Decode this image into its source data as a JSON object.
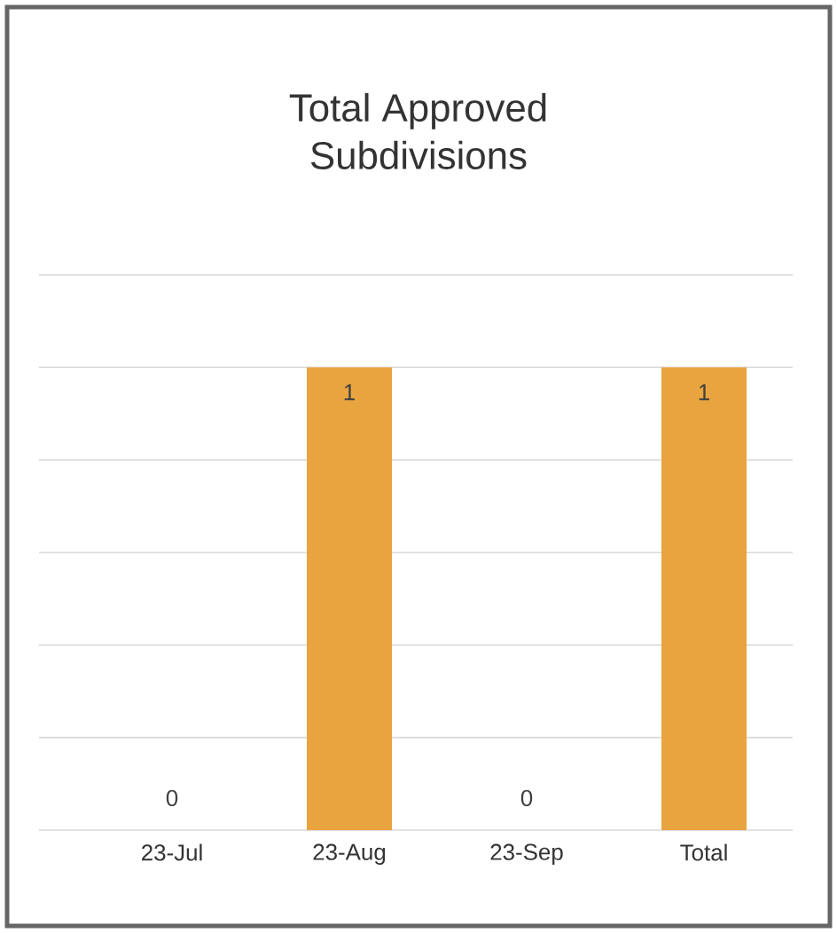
{
  "chart_data": {
    "type": "bar",
    "title": "Total Approved Subdivisions",
    "categories": [
      "23-Jul",
      "23-Aug",
      "23-Sep",
      "Total"
    ],
    "values": [
      0,
      1,
      0,
      1
    ],
    "color": "#e8a43f",
    "ylim": [
      0,
      1.2
    ],
    "yticks": [
      {
        "value": 0,
        "label": null
      },
      {
        "value": 0.2,
        "label": null
      },
      {
        "value": 0.4,
        "label": null
      },
      {
        "value": 0.6,
        "label": null
      },
      {
        "value": 0.8,
        "label": null
      },
      {
        "value": 1,
        "label": null
      },
      {
        "value": 1.2,
        "label": null
      }
    ],
    "grid": "y",
    "data_labels": true,
    "tick_labels": "x"
  }
}
